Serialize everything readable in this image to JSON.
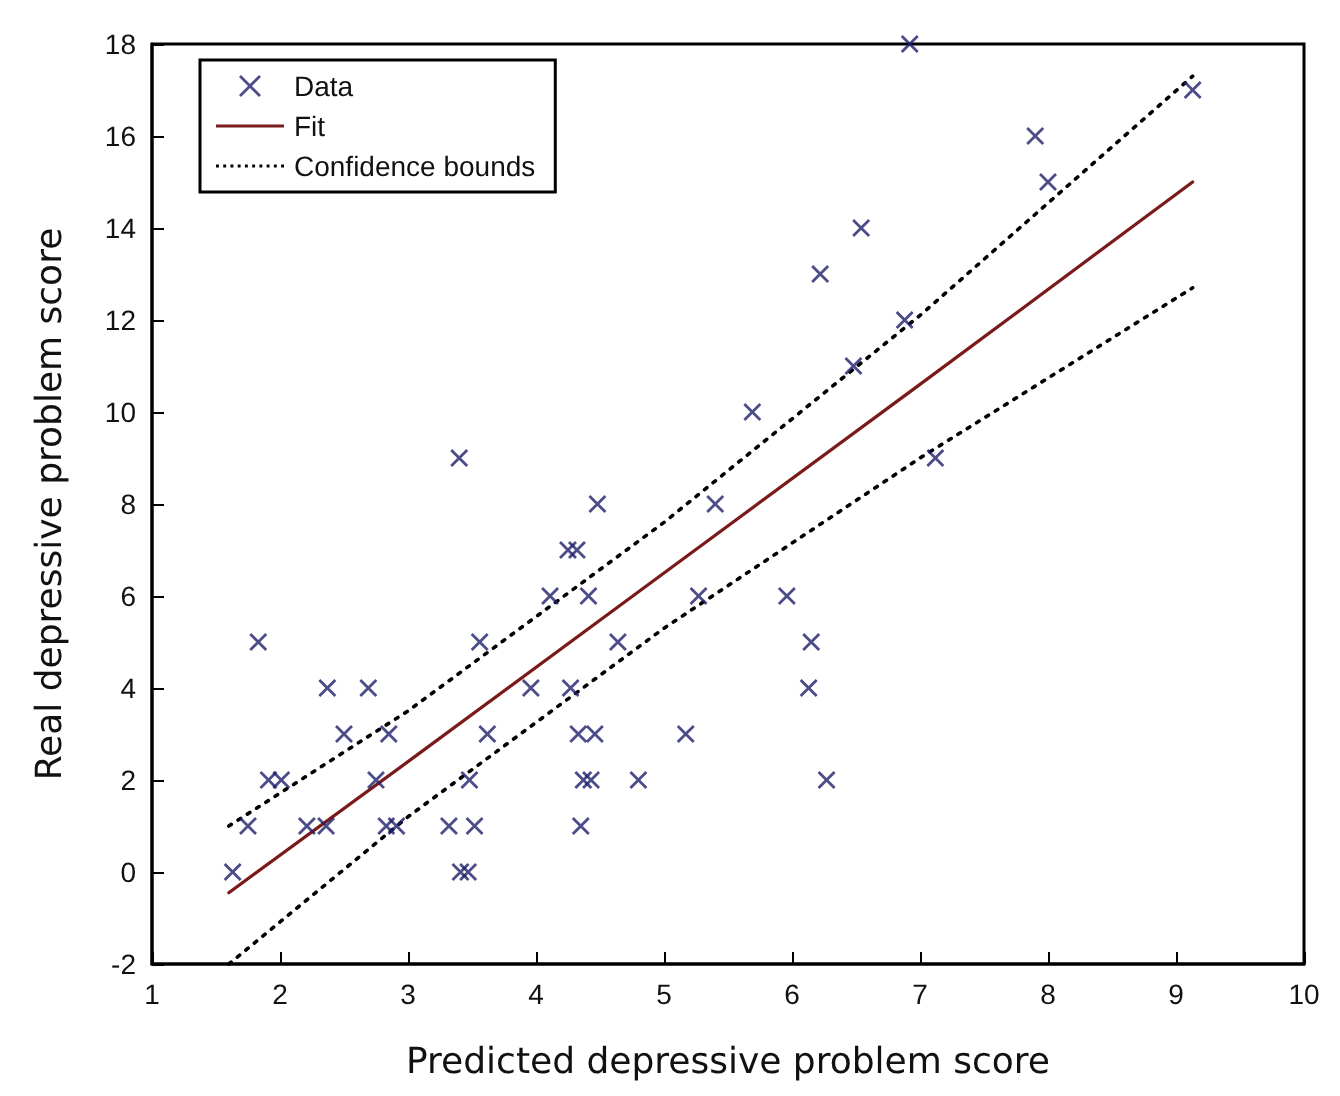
{
  "chart_data": {
    "type": "scatter",
    "xlabel": "Predicted depressive problem score",
    "ylabel": "Real depressive problem score",
    "xlim": [
      1,
      10
    ],
    "xticks": [
      1,
      2,
      3,
      4,
      5,
      6,
      7,
      8,
      9,
      10
    ],
    "ylim": [
      -2,
      18
    ],
    "yticks": [
      -2,
      0,
      2,
      4,
      6,
      8,
      10,
      12,
      14,
      16,
      18
    ],
    "grid": false,
    "legend": "top left",
    "series": [
      {
        "name": "Data",
        "marker": "cross",
        "color": "#1f1f6b",
        "x": [
          1.63,
          1.75,
          1.83,
          1.91,
          2.01,
          2.21,
          2.36,
          2.37,
          2.5,
          2.69,
          2.75,
          2.85,
          2.83,
          2.91,
          3.32,
          3.41,
          3.47,
          3.48,
          3.52,
          3.56,
          3.62,
          3.96,
          4.11,
          4.25,
          4.32,
          4.27,
          4.33,
          4.35,
          4.37,
          4.41,
          4.46,
          4.43,
          4.48,
          4.64,
          4.8,
          5.17,
          5.27,
          5.4,
          6.92,
          9.13,
          7.9,
          8.0,
          6.54,
          6.22,
          6.88,
          6.48,
          5.69,
          7.12,
          3.4,
          5.96,
          6.15,
          6.13,
          6.27
        ],
        "values": [
          0,
          1,
          5,
          2,
          2,
          1,
          1,
          4,
          3,
          4,
          2,
          3,
          1,
          1,
          1,
          0,
          0,
          2,
          1,
          5,
          3,
          4,
          6,
          7,
          7,
          4,
          3,
          1,
          2,
          6,
          3,
          2,
          8,
          5,
          2,
          3,
          6,
          8,
          18,
          17,
          16,
          15,
          14,
          13,
          12,
          11,
          10,
          9,
          9,
          6,
          5,
          4,
          2
        ]
      },
      {
        "name": "Fit",
        "type": "line",
        "marker": "none",
        "line_style": "solid",
        "color": "#7a1a1a",
        "x": [
          1.6,
          3,
          5,
          7,
          9.13
        ],
        "values": [
          -0.45,
          2.4,
          6.5,
          10.6,
          15.0
        ]
      },
      {
        "name": "Confidence bounds",
        "type": "line",
        "marker": "none",
        "line_style": "dotted",
        "color": "#000000",
        "x": [
          1.6,
          3,
          5,
          7,
          9.13
        ],
        "values": [
          1.0,
          3.5,
          7.6,
          12.1,
          17.3
        ]
      },
      {
        "type": "line",
        "marker": "none",
        "line_style": "dotted",
        "color": "#000000",
        "x": [
          1.6,
          3,
          5,
          7,
          9.13
        ],
        "values": [
          -2.0,
          1.2,
          5.3,
          9.0,
          12.7
        ]
      }
    ]
  }
}
